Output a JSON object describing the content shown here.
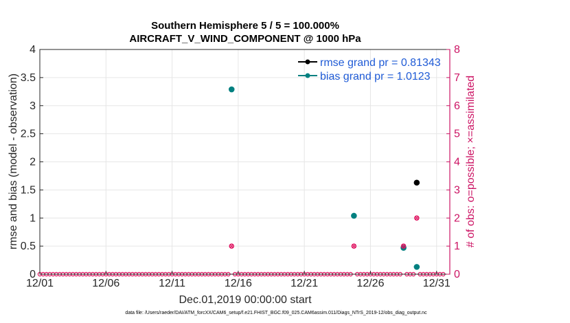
{
  "chart_data": {
    "type": "scatter",
    "title_line1": "Southern Hemisphere 5 / 5 = 100.000%",
    "title_line2": "AIRCRAFT_V_WIND_COMPONENT @ 1000 hPa",
    "xlabel": "Dec.01,2019 00:00:00 start",
    "ylabel_left": "rmse and bias (model - observation)",
    "ylabel_right": "# of obs: o=possible; ×=assimilated",
    "footer": "data file: /Users/raeder/DAI/ATM_forcXX/CAM6_setup/f.e21.FHIST_BGC.f09_025.CAM6assim.011/Diags_NTrS_2019-12/obs_diag_output.nc",
    "x_ticks": [
      {
        "value": 1,
        "label": "12/01"
      },
      {
        "value": 6,
        "label": "12/06"
      },
      {
        "value": 11,
        "label": "12/11"
      },
      {
        "value": 16,
        "label": "12/16"
      },
      {
        "value": 21,
        "label": "12/21"
      },
      {
        "value": 26,
        "label": "12/26"
      },
      {
        "value": 31,
        "label": "12/31"
      }
    ],
    "xlim": [
      1,
      32
    ],
    "ylim_left": [
      0,
      4
    ],
    "ylim_right": [
      0,
      8
    ],
    "y_ticks_left": [
      "0",
      "0.5",
      "1",
      "1.5",
      "2",
      "2.5",
      "3",
      "3.5",
      "4"
    ],
    "y_ticks_right": [
      "0",
      "1",
      "2",
      "3",
      "4",
      "5",
      "6",
      "7",
      "8"
    ],
    "series": [
      {
        "name": "rmse",
        "legend": "rmse grand pr = 0.81343",
        "color": "#000000",
        "points": [
          {
            "x": 29.5,
            "y": 1.63
          }
        ]
      },
      {
        "name": "bias",
        "legend": "bias grand pr = 1.0123",
        "color": "#008080",
        "points": [
          {
            "x": 15.5,
            "y": 3.29
          },
          {
            "x": 24.75,
            "y": 1.04
          },
          {
            "x": 28.5,
            "y": 0.47
          },
          {
            "x": 29.5,
            "y": 0.13
          }
        ]
      },
      {
        "name": "obs_possible",
        "color": "#e0115f",
        "points": [
          {
            "x": 15.5,
            "y": 1
          },
          {
            "x": 24.75,
            "y": 1
          },
          {
            "x": 28.5,
            "y": 1
          },
          {
            "x": 29.5,
            "y": 2
          }
        ]
      }
    ],
    "colors": {
      "right_axis": "#cc1464",
      "legend_text": "#1f5bd6",
      "grid": "#e6e6e6"
    }
  }
}
